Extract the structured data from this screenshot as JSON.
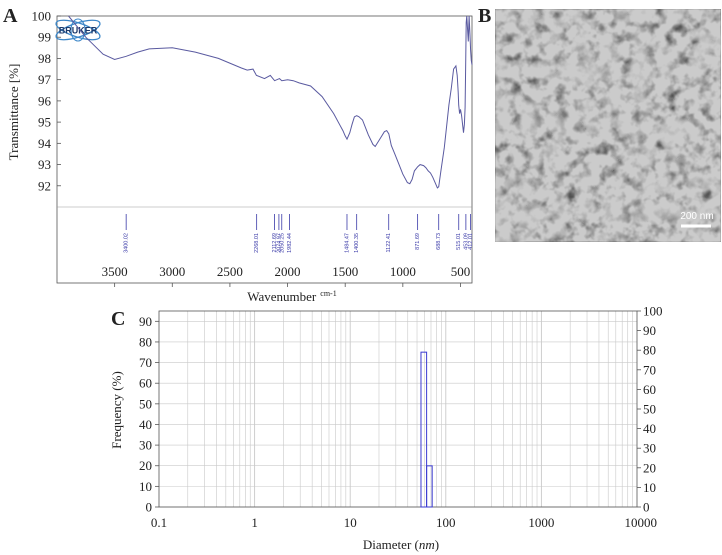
{
  "panels": {
    "a_label": "A",
    "b_label": "B",
    "c_label": "C"
  },
  "ftir": {
    "logo_text": "BRUKER",
    "ylabel": "Transmittance [%]",
    "xlabel": "Wavenumber",
    "xlabel_unit": "cm-1",
    "y_ticks": [
      "100",
      "99",
      "98",
      "97",
      "96",
      "95",
      "94",
      "93",
      "92"
    ],
    "x_ticks": [
      "3500",
      "3000",
      "2500",
      "2000",
      "1500",
      "1000",
      "500"
    ],
    "colors": {
      "spectrum": "#5a5aa0",
      "peak_marker": "#3a3aa8"
    }
  },
  "sem": {
    "scale_bar_label": "200 nm"
  },
  "chart_data": [
    {
      "type": "line",
      "panel": "A",
      "xlabel": "Wavenumber cm-1",
      "ylabel": "Transmittance [%]",
      "xlim": [
        4000,
        400
      ],
      "ylim": [
        91,
        100
      ],
      "x": [
        3900,
        3750,
        3600,
        3500,
        3400,
        3300,
        3200,
        3000,
        2800,
        2600,
        2400,
        2350,
        2300,
        2270,
        2200,
        2150,
        2112,
        2070,
        2050,
        2000,
        1950,
        1900,
        1800,
        1700,
        1600,
        1550,
        1520,
        1500,
        1484,
        1460,
        1440,
        1420,
        1400,
        1380,
        1350,
        1300,
        1260,
        1240,
        1200,
        1160,
        1140,
        1122,
        1100,
        1070,
        1040,
        1000,
        960,
        940,
        920,
        900,
        871,
        850,
        820,
        800,
        780,
        760,
        740,
        720,
        700,
        689,
        670,
        640,
        620,
        600,
        580,
        560,
        540,
        528,
        520,
        515,
        508,
        500,
        490,
        480,
        474,
        466,
        460,
        455,
        450,
        445,
        440,
        432,
        425,
        418,
        412,
        406,
        400
      ],
      "y": [
        100.0,
        99.0,
        98.2,
        97.95,
        98.1,
        98.3,
        98.45,
        98.5,
        98.3,
        98.0,
        97.55,
        97.45,
        97.5,
        97.2,
        97.05,
        97.2,
        96.95,
        97.05,
        96.95,
        97.0,
        96.95,
        96.85,
        96.7,
        96.2,
        95.4,
        94.9,
        94.6,
        94.35,
        94.2,
        94.5,
        94.9,
        95.25,
        95.3,
        95.25,
        95.1,
        94.4,
        93.95,
        93.85,
        94.2,
        94.55,
        94.6,
        94.45,
        93.9,
        93.5,
        93.1,
        92.55,
        92.15,
        92.1,
        92.3,
        92.7,
        92.9,
        93.0,
        92.95,
        92.85,
        92.7,
        92.6,
        92.4,
        92.15,
        91.9,
        91.95,
        92.7,
        93.8,
        94.8,
        95.8,
        96.6,
        97.5,
        97.65,
        97.2,
        96.4,
        95.8,
        95.4,
        95.6,
        95.3,
        94.8,
        94.5,
        94.9,
        95.7,
        97.8,
        99.7,
        100.0,
        99.5,
        98.8,
        100.0,
        99.2,
        98.4,
        97.9,
        97.7
      ],
      "peaks": [
        {
          "x": 3400.02,
          "label": "3400.02"
        },
        {
          "x": 2268.01,
          "label": "2268.01"
        },
        {
          "x": 2112.69,
          "label": "2112.69"
        },
        {
          "x": 2074.97,
          "label": "2074.97"
        },
        {
          "x": 2050.25,
          "label": "2050.25"
        },
        {
          "x": 1982.44,
          "label": "1982.44"
        },
        {
          "x": 1484.47,
          "label": "1484.47"
        },
        {
          "x": 1400.35,
          "label": "1400.35"
        },
        {
          "x": 1122.41,
          "label": "1122.41"
        },
        {
          "x": 871.69,
          "label": "871.69"
        },
        {
          "x": 688.73,
          "label": "688.73"
        },
        {
          "x": 515.01,
          "label": "515.01"
        },
        {
          "x": 453.09,
          "label": "453.09"
        },
        {
          "x": 412.01,
          "label": "412.01"
        }
      ]
    },
    {
      "type": "bar",
      "panel": "C",
      "xlabel": "Diameter (nm)",
      "ylabel": "Frequency (%)",
      "xscale": "log",
      "xlim": [
        0.1,
        10000
      ],
      "ylim_left": [
        0,
        95
      ],
      "ylim_right": [
        0,
        100
      ],
      "x_ticks": [
        "0.1",
        "1",
        "10",
        "100",
        "1000",
        "10000"
      ],
      "y_ticks_left": [
        "0",
        "10",
        "20",
        "30",
        "40",
        "50",
        "60",
        "70",
        "80",
        "90"
      ],
      "y_ticks_right": [
        "0",
        "10",
        "20",
        "30",
        "40",
        "50",
        "60",
        "70",
        "80",
        "90",
        "100"
      ],
      "bars": [
        {
          "x0": 55,
          "x1": 63,
          "value": 79
        },
        {
          "x0": 63,
          "x1": 72,
          "value": 21
        }
      ],
      "grid": true
    }
  ]
}
